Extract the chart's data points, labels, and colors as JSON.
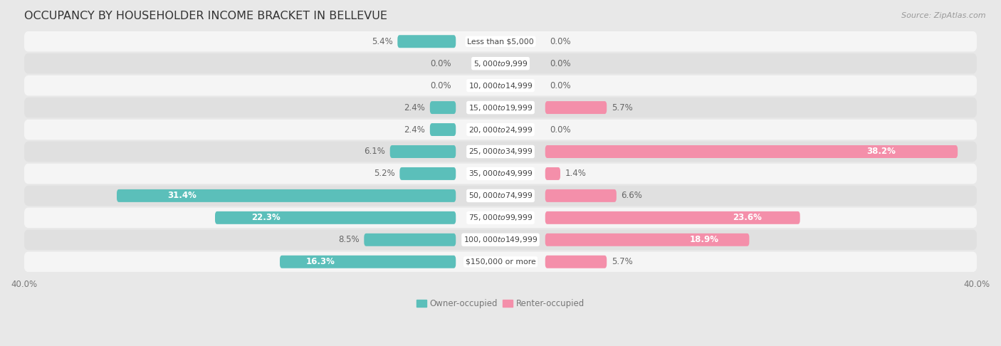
{
  "title": "OCCUPANCY BY HOUSEHOLDER INCOME BRACKET IN BELLEVUE",
  "source": "Source: ZipAtlas.com",
  "categories": [
    "Less than $5,000",
    "$5,000 to $9,999",
    "$10,000 to $14,999",
    "$15,000 to $19,999",
    "$20,000 to $24,999",
    "$25,000 to $34,999",
    "$35,000 to $49,999",
    "$50,000 to $74,999",
    "$75,000 to $99,999",
    "$100,000 to $149,999",
    "$150,000 or more"
  ],
  "owner_values": [
    5.4,
    0.0,
    0.0,
    2.4,
    2.4,
    6.1,
    5.2,
    31.4,
    22.3,
    8.5,
    16.3
  ],
  "renter_values": [
    0.0,
    0.0,
    0.0,
    5.7,
    0.0,
    38.2,
    1.4,
    6.6,
    23.6,
    18.9,
    5.7
  ],
  "owner_color": "#5BBFBA",
  "renter_color": "#F48FAA",
  "bar_height": 0.58,
  "max_val": 40.0,
  "bg_color": "#e8e8e8",
  "row_bg_light": "#f5f5f5",
  "row_bg_dark": "#e0e0e0",
  "title_fontsize": 11.5,
  "source_fontsize": 8,
  "label_fontsize": 8.5,
  "category_fontsize": 7.8,
  "axis_label_fontsize": 8.5,
  "legend_fontsize": 8.5
}
